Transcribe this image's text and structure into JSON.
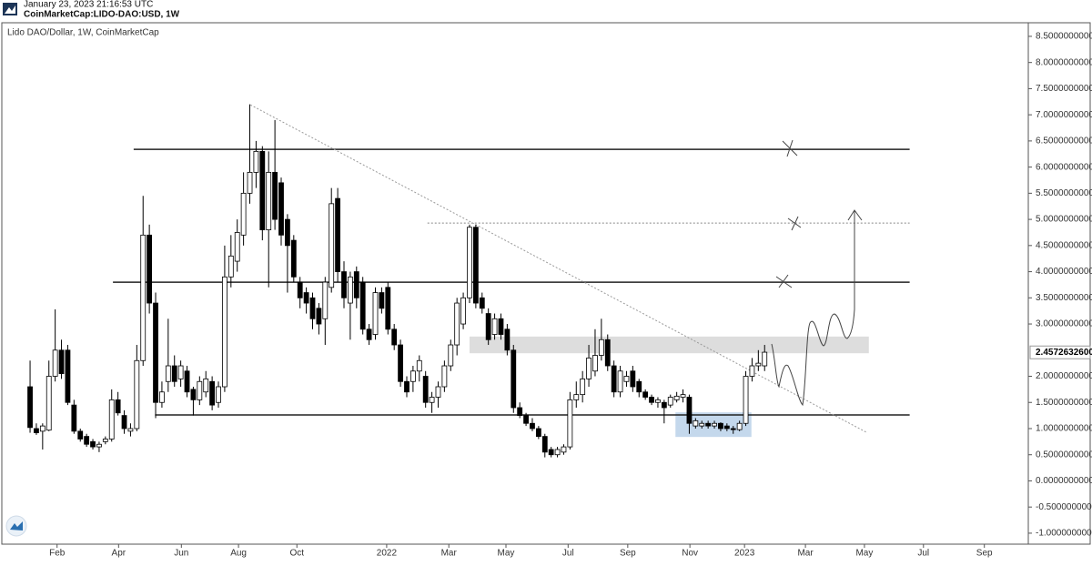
{
  "header": {
    "timestamp": "January 23, 2023 21:16:53 UTC",
    "symbol": "CoinMarketCap:LIDO-DAO:USD, 1W"
  },
  "chart_data": {
    "type": "candlestick",
    "title": "Lido DAO/Dollar, 1W, CoinMarketCap",
    "up_color": "#ffffff",
    "down_color": "#000000",
    "x": [
      0,
      1,
      2,
      3,
      4,
      5,
      6,
      7,
      8,
      9,
      10,
      11,
      12,
      13,
      14,
      15,
      16,
      17,
      18,
      19,
      20,
      21,
      22,
      23,
      24,
      25,
      26,
      27,
      28,
      29,
      30,
      31,
      32,
      33,
      34,
      35,
      36,
      37,
      38,
      39,
      40,
      41,
      42,
      43,
      44,
      45,
      46,
      47,
      48,
      49,
      50,
      51,
      52,
      53,
      54,
      55,
      56,
      57,
      58,
      59,
      60,
      61,
      62,
      63,
      64,
      65,
      66,
      67,
      68,
      69,
      70,
      71,
      72,
      73,
      74,
      75,
      76,
      77,
      78,
      79,
      80,
      81,
      82,
      83,
      84,
      85,
      86,
      87,
      88,
      89,
      90,
      91,
      92,
      93,
      94,
      95,
      96,
      97,
      98,
      99,
      100,
      101,
      102,
      103,
      104,
      105,
      106,
      107,
      108,
      109,
      110,
      111,
      112,
      113,
      114,
      115,
      116,
      117
    ],
    "candles": [
      [
        1.8,
        2.3,
        0.92,
        1.02
      ],
      [
        1.0,
        1.1,
        0.88,
        0.92
      ],
      [
        0.95,
        1.1,
        0.6,
        1.05
      ],
      [
        0.97,
        2.3,
        0.95,
        2.0
      ],
      [
        2.0,
        3.28,
        1.9,
        2.5
      ],
      [
        2.5,
        2.7,
        1.95,
        2.05
      ],
      [
        2.5,
        2.6,
        1.45,
        1.5
      ],
      [
        1.45,
        1.55,
        0.9,
        0.95
      ],
      [
        0.95,
        1.0,
        0.75,
        0.8
      ],
      [
        0.85,
        0.9,
        0.65,
        0.7
      ],
      [
        0.75,
        0.8,
        0.6,
        0.65
      ],
      [
        0.65,
        0.75,
        0.55,
        0.7
      ],
      [
        0.75,
        0.85,
        0.7,
        0.8
      ],
      [
        0.8,
        1.75,
        0.75,
        1.55
      ],
      [
        1.55,
        1.7,
        1.25,
        1.3
      ],
      [
        1.25,
        1.35,
        0.9,
        1.0
      ],
      [
        0.95,
        1.1,
        0.85,
        1.0
      ],
      [
        1.0,
        2.6,
        0.95,
        2.3
      ],
      [
        2.3,
        5.45,
        2.2,
        4.7
      ],
      [
        4.7,
        4.9,
        3.2,
        3.4
      ],
      [
        3.4,
        3.6,
        1.2,
        1.5
      ],
      [
        1.5,
        1.9,
        1.4,
        1.7
      ],
      [
        1.9,
        3.1,
        1.7,
        2.2
      ],
      [
        2.2,
        2.4,
        1.8,
        1.9
      ],
      [
        1.95,
        2.3,
        1.8,
        2.2
      ],
      [
        2.1,
        2.2,
        1.6,
        1.7
      ],
      [
        1.75,
        1.8,
        1.25,
        1.55
      ],
      [
        1.55,
        2.0,
        1.45,
        1.9
      ],
      [
        1.7,
        2.1,
        1.6,
        1.95
      ],
      [
        1.9,
        2.0,
        1.35,
        1.45
      ],
      [
        1.5,
        1.9,
        1.4,
        1.8
      ],
      [
        1.8,
        4.5,
        1.7,
        3.9
      ],
      [
        3.9,
        4.7,
        3.7,
        4.3
      ],
      [
        4.2,
        5.0,
        4.0,
        4.75
      ],
      [
        4.7,
        5.9,
        4.5,
        5.5
      ],
      [
        5.5,
        7.2,
        5.3,
        5.9
      ],
      [
        5.9,
        6.5,
        5.6,
        6.3
      ],
      [
        6.3,
        6.4,
        4.6,
        4.8
      ],
      [
        4.8,
        6.3,
        3.7,
        5.9
      ],
      [
        5.9,
        6.9,
        4.8,
        5.0
      ],
      [
        5.7,
        5.8,
        4.5,
        4.7
      ],
      [
        5.0,
        5.1,
        3.6,
        4.5
      ],
      [
        4.6,
        4.7,
        3.8,
        3.9
      ],
      [
        3.8,
        3.9,
        3.3,
        3.5
      ],
      [
        3.6,
        3.7,
        3.2,
        3.4
      ],
      [
        3.5,
        3.6,
        2.9,
        3.1
      ],
      [
        3.3,
        3.4,
        2.8,
        3.0
      ],
      [
        3.1,
        3.9,
        2.6,
        3.8
      ],
      [
        3.7,
        5.6,
        3.6,
        5.3
      ],
      [
        5.4,
        5.6,
        3.8,
        4.0
      ],
      [
        4.0,
        4.2,
        3.3,
        3.5
      ],
      [
        3.4,
        4.0,
        2.7,
        3.9
      ],
      [
        4.0,
        4.1,
        3.3,
        3.5
      ],
      [
        3.8,
        3.9,
        2.8,
        2.9
      ],
      [
        2.9,
        3.0,
        2.6,
        2.7
      ],
      [
        2.8,
        3.7,
        2.7,
        3.6
      ],
      [
        3.6,
        3.7,
        3.2,
        3.3
      ],
      [
        3.7,
        3.8,
        2.8,
        2.9
      ],
      [
        2.9,
        3.0,
        2.5,
        2.6
      ],
      [
        2.6,
        2.7,
        1.8,
        1.9
      ],
      [
        1.9,
        2.0,
        1.6,
        1.7
      ],
      [
        1.9,
        2.2,
        1.7,
        2.1
      ],
      [
        2.1,
        2.4,
        1.9,
        2.3
      ],
      [
        2.0,
        2.1,
        1.4,
        1.5
      ],
      [
        1.5,
        1.7,
        1.3,
        1.6
      ],
      [
        1.6,
        1.9,
        1.4,
        1.8
      ],
      [
        1.8,
        2.3,
        1.7,
        2.2
      ],
      [
        2.2,
        2.7,
        2.1,
        2.6
      ],
      [
        2.6,
        3.5,
        2.4,
        3.4
      ],
      [
        3.0,
        3.6,
        2.9,
        3.5
      ],
      [
        3.5,
        4.9,
        3.4,
        4.85
      ],
      [
        4.85,
        4.9,
        3.3,
        3.4
      ],
      [
        3.5,
        3.6,
        3.2,
        3.3
      ],
      [
        3.2,
        3.3,
        2.6,
        2.7
      ],
      [
        2.8,
        3.2,
        2.7,
        3.1
      ],
      [
        3.1,
        3.2,
        2.7,
        2.8
      ],
      [
        2.9,
        3.0,
        2.4,
        2.5
      ],
      [
        2.5,
        2.6,
        1.3,
        1.4
      ],
      [
        1.4,
        1.5,
        1.2,
        1.25
      ],
      [
        1.25,
        1.3,
        1.05,
        1.1
      ],
      [
        1.1,
        1.2,
        0.95,
        1.0
      ],
      [
        1.0,
        1.05,
        0.8,
        0.85
      ],
      [
        0.85,
        0.9,
        0.45,
        0.55
      ],
      [
        0.6,
        0.65,
        0.45,
        0.5
      ],
      [
        0.5,
        0.65,
        0.45,
        0.6
      ],
      [
        0.55,
        0.7,
        0.5,
        0.65
      ],
      [
        0.65,
        1.7,
        0.6,
        1.55
      ],
      [
        1.55,
        1.9,
        1.4,
        1.65
      ],
      [
        1.65,
        2.1,
        1.5,
        1.95
      ],
      [
        1.95,
        2.6,
        1.8,
        2.35
      ],
      [
        2.1,
        2.9,
        2.0,
        2.4
      ],
      [
        2.4,
        3.1,
        2.3,
        2.7
      ],
      [
        2.7,
        2.8,
        2.1,
        2.2
      ],
      [
        2.2,
        2.3,
        1.6,
        1.7
      ],
      [
        1.7,
        2.2,
        1.6,
        2.1
      ],
      [
        1.9,
        2.1,
        1.8,
        2.0
      ],
      [
        2.1,
        2.2,
        1.7,
        1.8
      ],
      [
        1.9,
        1.95,
        1.6,
        1.7
      ],
      [
        1.7,
        1.75,
        1.55,
        1.6
      ],
      [
        1.6,
        1.65,
        1.45,
        1.5
      ],
      [
        1.5,
        1.6,
        1.4,
        1.55
      ],
      [
        1.5,
        1.55,
        1.1,
        1.4
      ],
      [
        1.45,
        1.65,
        1.4,
        1.6
      ],
      [
        1.55,
        1.7,
        1.5,
        1.62
      ],
      [
        1.6,
        1.75,
        1.5,
        1.65
      ],
      [
        1.6,
        1.65,
        0.9,
        1.1
      ],
      [
        1.05,
        1.2,
        1.0,
        1.15
      ],
      [
        1.05,
        1.15,
        1.0,
        1.1
      ],
      [
        1.1,
        1.15,
        1.0,
        1.05
      ],
      [
        1.05,
        1.15,
        1.0,
        1.1
      ],
      [
        1.1,
        1.12,
        0.95,
        1.0
      ],
      [
        1.05,
        1.1,
        0.95,
        1.0
      ],
      [
        1.0,
        1.05,
        0.9,
        0.98
      ],
      [
        0.98,
        1.15,
        0.95,
        1.1
      ],
      [
        1.1,
        2.1,
        1.05,
        2.0
      ],
      [
        2.0,
        2.35,
        1.9,
        2.2
      ],
      [
        2.2,
        2.5,
        2.1,
        2.25
      ],
      [
        2.2,
        2.6,
        2.1,
        2.46
      ]
    ],
    "xlim": [
      -4.5,
      159.0
    ],
    "xticks": [
      {
        "value": 4.3,
        "label": "Feb"
      },
      {
        "value": 14.1,
        "label": "Apr"
      },
      {
        "value": 24.1,
        "label": "Jun"
      },
      {
        "value": 33.2,
        "label": "Aug"
      },
      {
        "value": 42.5,
        "label": "Oct"
      },
      {
        "value": 56.8,
        "label": "2022"
      },
      {
        "value": 66.7,
        "label": "Mar"
      },
      {
        "value": 75.8,
        "label": "May"
      },
      {
        "value": 85.7,
        "label": "Jul"
      },
      {
        "value": 95.2,
        "label": "Sep"
      },
      {
        "value": 105.1,
        "label": "Nov"
      },
      {
        "value": 113.8,
        "label": "2023"
      },
      {
        "value": 123.5,
        "label": "Mar"
      },
      {
        "value": 132.9,
        "label": "May"
      },
      {
        "value": 142.3,
        "label": "Jul"
      },
      {
        "value": 152.0,
        "label": "Sep"
      }
    ],
    "ylim": [
      -1.21,
      8.76
    ],
    "yticks": [
      {
        "value": 8.5,
        "label": "8.5000000000"
      },
      {
        "value": 8,
        "label": "8.0000000000"
      },
      {
        "value": 7.5,
        "label": "7.5000000000"
      },
      {
        "value": 7,
        "label": "7.0000000000"
      },
      {
        "value": 6.5,
        "label": "6.5000000000"
      },
      {
        "value": 6,
        "label": "6.0000000000"
      },
      {
        "value": 5.5,
        "label": "5.5000000000"
      },
      {
        "value": 5,
        "label": "5.0000000000"
      },
      {
        "value": 4.5,
        "label": "4.5000000000"
      },
      {
        "value": 4,
        "label": "4.0000000000"
      },
      {
        "value": 3.5,
        "label": "3.5000000000"
      },
      {
        "value": 3,
        "label": "3.0000000000"
      },
      {
        "value": 2,
        "label": "2.0000000000"
      },
      {
        "value": 1.5,
        "label": "1.5000000000"
      },
      {
        "value": 1,
        "label": "1.0000000000"
      },
      {
        "value": 0.5,
        "label": "0.5000000000"
      },
      {
        "value": 0,
        "label": "0.0000000000"
      },
      {
        "value": -0.5,
        "label": "-0.5000000000"
      },
      {
        "value": -1,
        "label": "-1.0000000000"
      }
    ],
    "last_price": {
      "value": 2.45726326,
      "label": "2.4572632600"
    },
    "hlines": [
      {
        "value": 6.34,
        "x": [
          16.5,
          140.1
        ],
        "style": "solid"
      },
      {
        "value": 3.8,
        "x": [
          13.2,
          140.1
        ],
        "style": "solid"
      },
      {
        "value": 1.26,
        "x": [
          19.9,
          140.1
        ],
        "style": "solid"
      },
      {
        "value": 4.93,
        "x": [
          63.3,
          140.1
        ],
        "style": "dotted"
      }
    ],
    "zones": [
      {
        "y": [
          2.44,
          2.76
        ],
        "x": [
          70.0,
          133.6
        ],
        "color": "#dddddd"
      },
      {
        "y": [
          0.84,
          1.31
        ],
        "x": [
          102.8,
          114.9
        ],
        "color": "#c4d8ec"
      }
    ],
    "trendline": {
      "x": [
        35.1,
        133.2
      ],
      "y": [
        7.19,
        0.93
      ]
    }
  }
}
